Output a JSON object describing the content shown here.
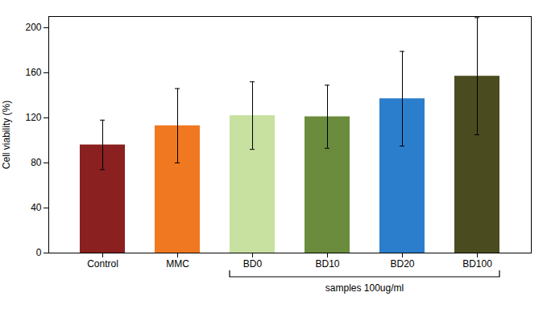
{
  "chart_data": {
    "type": "bar",
    "categories": [
      "Control",
      "MMC",
      "BD0",
      "BD10",
      "BD20",
      "BD100"
    ],
    "values": [
      96,
      113,
      122,
      121,
      137,
      157
    ],
    "errors": [
      22,
      33,
      30,
      28,
      42,
      52
    ],
    "colors": [
      "#8B2020",
      "#F07820",
      "#C8E0A0",
      "#6B8C3C",
      "#2B7ECC",
      "#4B4B20"
    ],
    "ylabel": "Cell viability (%)",
    "ylim": [
      0,
      210
    ],
    "yticks": [
      0,
      40,
      80,
      120,
      160,
      200
    ],
    "annotations": [
      {
        "text": "samples 100ug/ml",
        "from": "BD0",
        "to": "BD100"
      }
    ]
  }
}
